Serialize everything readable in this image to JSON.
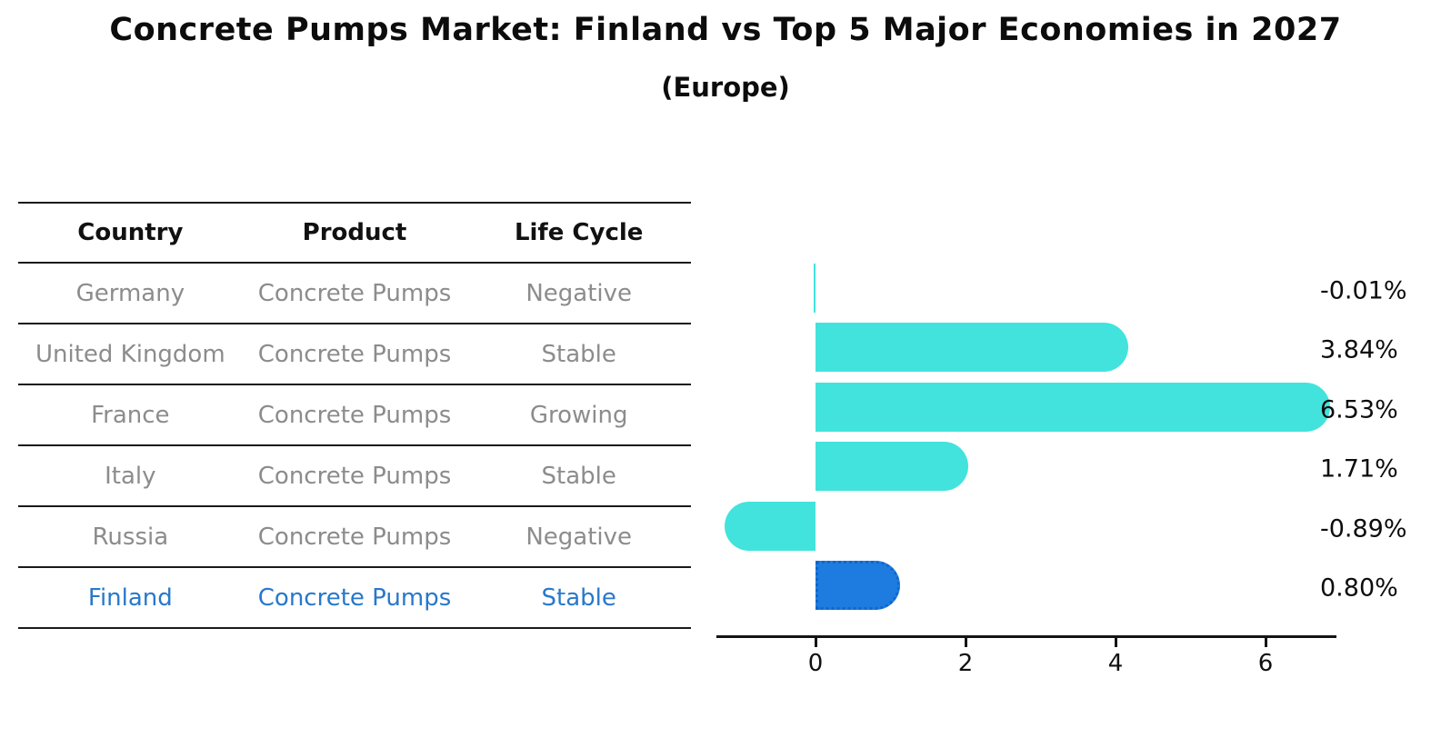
{
  "title": "Concrete Pumps Market: Finland vs Top 5 Major Economies in 2027",
  "subtitle": "(Europe)",
  "table": {
    "headers": [
      "Country",
      "Product",
      "Life Cycle"
    ],
    "rows": [
      {
        "country": "Germany",
        "product": "Concrete Pumps",
        "life_cycle": "Negative",
        "highlight": false
      },
      {
        "country": "United Kingdom",
        "product": "Concrete Pumps",
        "life_cycle": "Stable",
        "highlight": false
      },
      {
        "country": "France",
        "product": "Concrete Pumps",
        "life_cycle": "Growing",
        "highlight": false
      },
      {
        "country": "Italy",
        "product": "Concrete Pumps",
        "life_cycle": "Stable",
        "highlight": false
      },
      {
        "country": "Russia",
        "product": "Concrete Pumps",
        "life_cycle": "Negative",
        "highlight": false
      },
      {
        "country": "Finland",
        "product": "Concrete Pumps",
        "life_cycle": "Stable",
        "highlight": true
      }
    ]
  },
  "chart_data": {
    "type": "bar",
    "orientation": "horizontal",
    "title": "Concrete Pumps Market: Finland vs Top 5 Major Economies in 2027 (Europe)",
    "categories": [
      "Germany",
      "United Kingdom",
      "France",
      "Italy",
      "Russia",
      "Finland"
    ],
    "values": [
      -0.01,
      3.84,
      6.53,
      1.71,
      -0.89,
      0.8
    ],
    "value_labels": [
      "-0.01%",
      "3.84%",
      "6.53%",
      "1.71%",
      "-0.89%",
      "0.80%"
    ],
    "x_ticks": [
      "0",
      "2",
      "4",
      "6"
    ],
    "x_tick_values": [
      0,
      2,
      4,
      6
    ],
    "xlim": [
      -1.32,
      6.95
    ],
    "ylabel": "",
    "xlabel": "",
    "grid": false,
    "legend": false,
    "bar_color": "#42E3DC",
    "highlight_index": 5,
    "highlight_color": "#1E7CE0",
    "highlight_text_color": "#2878cb",
    "table_text_color": "#8c8c8c",
    "axis_color": "#141414"
  }
}
